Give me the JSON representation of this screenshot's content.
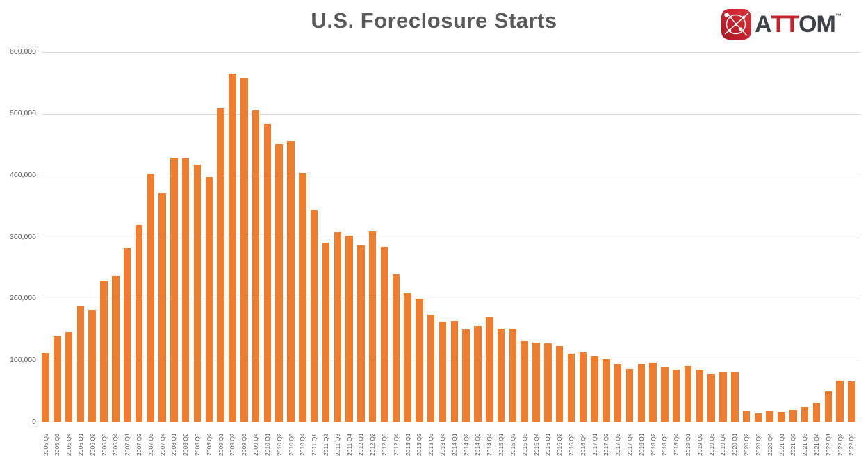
{
  "title": "U.S. Foreclosure Starts",
  "logo": {
    "icon": "attom-network-globe-icon",
    "part_a": "A",
    "part_tt": "TT",
    "part_om": "OM",
    "trademark": "™",
    "red": "#C5232D",
    "dark_gray": "#3E4347"
  },
  "colors": {
    "bar": "#ED7D31",
    "gridline": "#D9D9D9",
    "axis_text": "#595959",
    "title_text": "#595959"
  },
  "chart_data": {
    "type": "bar",
    "title": "U.S. Foreclosure Starts",
    "xlabel": "",
    "ylabel": "",
    "legend_position": "none",
    "grid": true,
    "ylim": [
      0,
      600000
    ],
    "ytick_interval": 100000,
    "ytick_labels": [
      "0",
      "100,000",
      "200,000",
      "300,000",
      "400,000",
      "500,000",
      "600,000"
    ],
    "categories": [
      "2005 Q2",
      "2005 Q3",
      "2005 Q4",
      "2006 Q1",
      "2006 Q2",
      "2006 Q3",
      "2006 Q4",
      "2007 Q1",
      "2007 Q2",
      "2007 Q3",
      "2007 Q4",
      "2008 Q1",
      "2008 Q2",
      "2008 Q3",
      "2008 Q4",
      "2009 Q1",
      "2009 Q2",
      "2009 Q3",
      "2009 Q4",
      "2010 Q1",
      "2010 Q2",
      "2010 Q3",
      "2010 Q4",
      "2011 Q1",
      "2011 Q2",
      "2011 Q3",
      "2011 Q4",
      "2012 Q1",
      "2012 Q2",
      "2012 Q3",
      "2012 Q4",
      "2013 Q1",
      "2013 Q2",
      "2013 Q3",
      "2013 Q4",
      "2014 Q1",
      "2014 Q2",
      "2014 Q3",
      "2014 Q4",
      "2015 Q1",
      "2015 Q2",
      "2015 Q3",
      "2015 Q4",
      "2016 Q1",
      "2016 Q2",
      "2016 Q3",
      "2016 Q4",
      "2017 Q1",
      "2017 Q2",
      "2017 Q3",
      "2017 Q4",
      "2018 Q1",
      "2018 Q2",
      "2018 Q3",
      "2018 Q4",
      "2019 Q1",
      "2019 Q2",
      "2019 Q3",
      "2019 Q4",
      "2020 Q1",
      "2020 Q2",
      "2020 Q3",
      "2020 Q4",
      "2021 Q1",
      "2021 Q2",
      "2021 Q3",
      "2021 Q4",
      "2022 Q1",
      "2022 Q2",
      "2022 Q3"
    ],
    "values": [
      113000,
      140000,
      146000,
      189000,
      182000,
      230000,
      238000,
      283000,
      320000,
      403000,
      372000,
      429000,
      428000,
      418000,
      397000,
      509000,
      565000,
      558000,
      506000,
      484000,
      451000,
      456000,
      404000,
      345000,
      292000,
      309000,
      303000,
      287000,
      310000,
      285000,
      240000,
      209000,
      200000,
      174000,
      163000,
      164000,
      151000,
      156000,
      171000,
      152000,
      152000,
      132000,
      130000,
      128000,
      124000,
      111000,
      114000,
      107000,
      102000,
      95000,
      87000,
      94000,
      97000,
      90000,
      85000,
      91000,
      86000,
      79000,
      81000,
      81000,
      18000,
      15000,
      18000,
      17000,
      20000,
      25000,
      31000,
      51000,
      67000,
      66000
    ]
  }
}
